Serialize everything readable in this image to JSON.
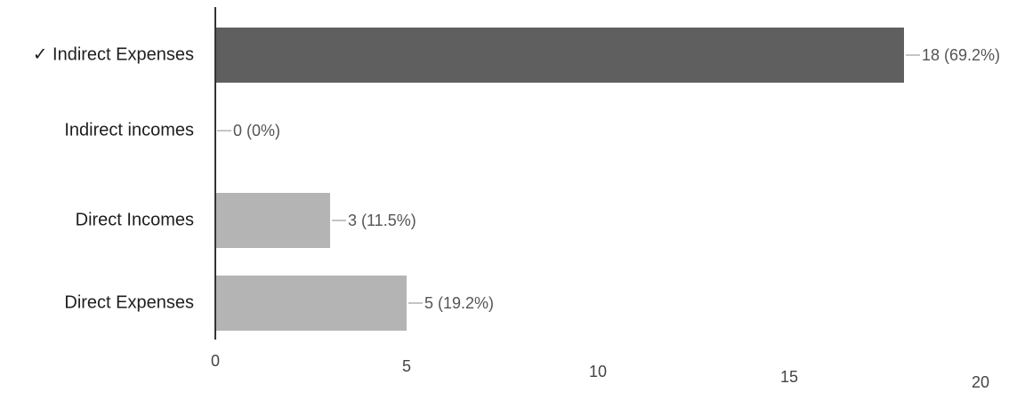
{
  "chart_data": {
    "type": "bar",
    "orientation": "horizontal",
    "categories": [
      "Indirect Expenses",
      "Indirect incomes",
      "Direct Incomes",
      "Direct Expenses"
    ],
    "values": [
      18,
      0,
      3,
      5
    ],
    "data_labels": [
      "18 (69.2%)",
      "0 (0%)",
      "3 (11.5%)",
      "5 (19.2%)"
    ],
    "selected_category": "Indirect Expenses",
    "selected_marker": "✓",
    "xlim": [
      0,
      20
    ],
    "xticks": [
      0,
      5,
      10,
      15,
      20
    ],
    "tick_labels": [
      "0",
      "5",
      "10",
      "15",
      "20"
    ],
    "colors": {
      "selected": "#5f5f5f",
      "default": "#b4b4b4",
      "axis": "#333333",
      "leader": "#8a8a8a"
    },
    "grid": false,
    "legend": "none"
  }
}
